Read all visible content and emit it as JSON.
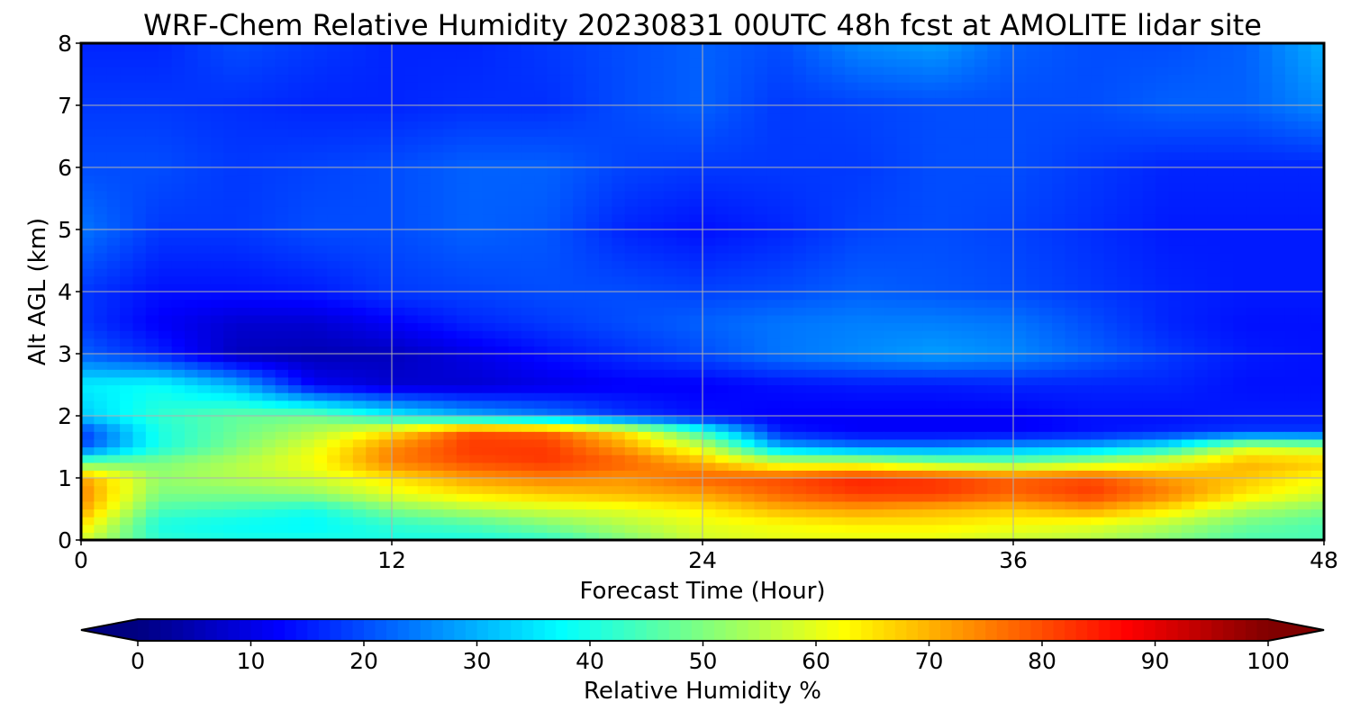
{
  "chart_data": {
    "type": "heatmap",
    "title": "WRF-Chem Relative Humidity 20230831 00UTC 48h fcst at AMOLITE lidar site",
    "xlabel": "Forecast Time (Hour)",
    "ylabel": "Alt AGL (km)",
    "xlim": [
      0,
      48
    ],
    "ylim": [
      0,
      8
    ],
    "x_ticks": [
      "0",
      "12",
      "24",
      "36",
      "48"
    ],
    "y_ticks": [
      "0",
      "1",
      "2",
      "3",
      "4",
      "5",
      "6",
      "7",
      "8"
    ],
    "grid": true,
    "colorbar": {
      "label": "Relative Humidity %",
      "range": [
        0,
        100
      ],
      "ticks": [
        "0",
        "10",
        "20",
        "30",
        "40",
        "50",
        "60",
        "70",
        "80",
        "90",
        "100"
      ],
      "colormap": "jet",
      "extend": "both"
    },
    "x": [
      0,
      3,
      6,
      9,
      12,
      15,
      18,
      21,
      24,
      27,
      30,
      33,
      36,
      39,
      42,
      45,
      48
    ],
    "y": [
      0,
      0.25,
      0.5,
      0.75,
      1,
      1.25,
      1.5,
      1.75,
      2,
      2.5,
      3,
      3.5,
      4,
      5,
      6,
      7,
      8
    ],
    "z": [
      [
        58,
        42,
        40,
        40,
        40,
        40,
        42,
        50,
        58,
        60,
        60,
        60,
        57,
        55,
        50,
        45,
        45
      ],
      [
        65,
        40,
        38,
        37,
        42,
        45,
        50,
        55,
        60,
        62,
        64,
        64,
        62,
        60,
        55,
        48,
        45
      ],
      [
        72,
        45,
        43,
        40,
        50,
        55,
        58,
        60,
        64,
        70,
        72,
        70,
        68,
        72,
        65,
        55,
        50
      ],
      [
        75,
        50,
        50,
        52,
        60,
        65,
        68,
        70,
        72,
        78,
        82,
        82,
        78,
        82,
        75,
        65,
        58
      ],
      [
        72,
        52,
        55,
        58,
        65,
        72,
        75,
        73,
        78,
        80,
        84,
        82,
        78,
        80,
        72,
        68,
        62
      ],
      [
        48,
        50,
        55,
        62,
        75,
        80,
        82,
        78,
        70,
        58,
        58,
        52,
        50,
        55,
        62,
        70,
        68
      ],
      [
        20,
        40,
        50,
        60,
        74,
        82,
        82,
        72,
        58,
        30,
        25,
        25,
        28,
        30,
        38,
        58,
        55
      ],
      [
        18,
        40,
        48,
        55,
        65,
        80,
        78,
        65,
        42,
        15,
        12,
        12,
        12,
        14,
        16,
        18,
        18
      ],
      [
        32,
        42,
        47,
        48,
        38,
        30,
        25,
        18,
        14,
        12,
        12,
        12,
        12,
        14,
        14,
        15,
        15
      ],
      [
        36,
        38,
        30,
        12,
        8,
        8,
        10,
        12,
        12,
        14,
        15,
        15,
        16,
        16,
        16,
        14,
        14
      ],
      [
        22,
        16,
        6,
        5,
        6,
        10,
        14,
        17,
        20,
        24,
        26,
        28,
        26,
        22,
        18,
        15,
        14
      ],
      [
        18,
        12,
        8,
        8,
        12,
        16,
        18,
        20,
        22,
        24,
        25,
        25,
        24,
        20,
        16,
        14,
        14
      ],
      [
        18,
        14,
        14,
        15,
        18,
        19,
        20,
        20,
        19,
        20,
        22,
        21,
        20,
        18,
        16,
        15,
        15
      ],
      [
        24,
        18,
        18,
        20,
        20,
        22,
        21,
        16,
        14,
        16,
        19,
        20,
        19,
        17,
        15,
        15,
        15
      ],
      [
        20,
        20,
        18,
        19,
        20,
        22,
        22,
        19,
        18,
        18,
        18,
        20,
        20,
        18,
        16,
        16,
        16
      ],
      [
        18,
        18,
        17,
        16,
        16,
        17,
        17,
        20,
        22,
        18,
        19,
        20,
        20,
        20,
        22,
        22,
        26
      ],
      [
        16,
        16,
        20,
        18,
        16,
        16,
        18,
        20,
        22,
        20,
        26,
        28,
        22,
        20,
        20,
        22,
        30
      ]
    ]
  }
}
